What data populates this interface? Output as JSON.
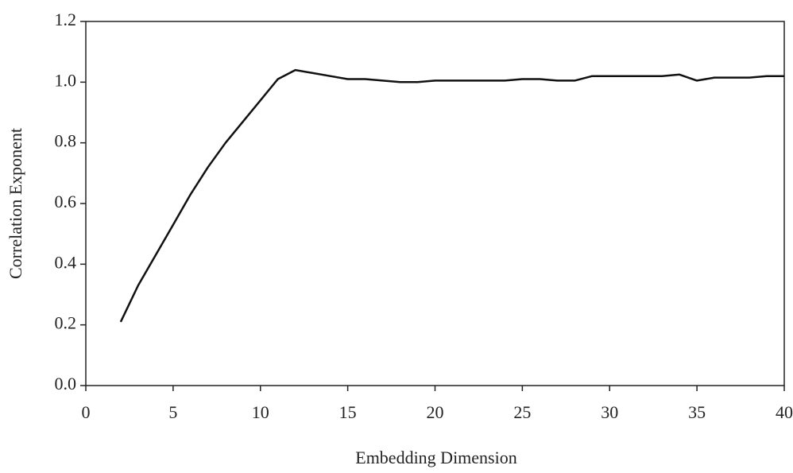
{
  "chart_data": {
    "type": "line",
    "x_label": "Embedding Dimension",
    "y_label": "Correlation Exponent",
    "x": [
      2,
      3,
      4,
      5,
      6,
      7,
      8,
      9,
      10,
      11,
      12,
      13,
      14,
      15,
      16,
      17,
      18,
      19,
      20,
      21,
      22,
      23,
      24,
      25,
      26,
      27,
      28,
      29,
      30,
      31,
      32,
      33,
      34,
      35,
      36,
      37,
      38,
      39,
      40
    ],
    "values": [
      0.21,
      0.33,
      0.43,
      0.53,
      0.63,
      0.72,
      0.8,
      0.87,
      0.94,
      1.01,
      1.04,
      1.03,
      1.02,
      1.01,
      1.01,
      1.005,
      1.0,
      1.0,
      1.005,
      1.005,
      1.005,
      1.005,
      1.005,
      1.01,
      1.01,
      1.005,
      1.005,
      1.02,
      1.02,
      1.02,
      1.02,
      1.02,
      1.025,
      1.005,
      1.015,
      1.015,
      1.015,
      1.02,
      1.02
    ],
    "color": "#111111",
    "xlim": [
      0,
      40
    ],
    "xticks": [
      0,
      5,
      10,
      15,
      20,
      25,
      30,
      35,
      40
    ],
    "ylim": [
      0,
      1.2
    ],
    "yticks": [
      {
        "value": 0,
        "label": "0.0"
      },
      0.2,
      0.4,
      0.6,
      0.8,
      {
        "value": 1,
        "label": "1.0"
      },
      1.2
    ],
    "grid": false
  }
}
